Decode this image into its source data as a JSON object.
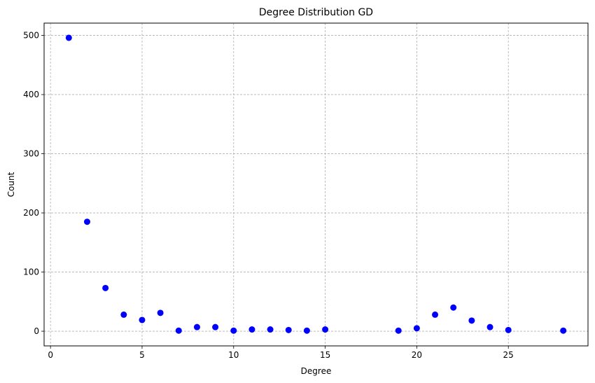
{
  "chart_data": {
    "type": "scatter",
    "title": "Degree Distribution GD",
    "xlabel": "Degree",
    "ylabel": "Count",
    "xlim": [
      -0.35,
      29.35
    ],
    "ylim": [
      -24.8,
      520.8
    ],
    "xticks": [
      0,
      5,
      10,
      15,
      20,
      25
    ],
    "yticks": [
      0,
      100,
      200,
      300,
      400,
      500
    ],
    "grid": true,
    "marker_color": "#0000ff",
    "points": [
      {
        "x": 1,
        "y": 496
      },
      {
        "x": 2,
        "y": 185
      },
      {
        "x": 3,
        "y": 73
      },
      {
        "x": 4,
        "y": 28
      },
      {
        "x": 5,
        "y": 19
      },
      {
        "x": 6,
        "y": 31
      },
      {
        "x": 7,
        "y": 1
      },
      {
        "x": 8,
        "y": 7
      },
      {
        "x": 9,
        "y": 7
      },
      {
        "x": 10,
        "y": 1
      },
      {
        "x": 11,
        "y": 3
      },
      {
        "x": 12,
        "y": 3
      },
      {
        "x": 13,
        "y": 2
      },
      {
        "x": 14,
        "y": 1
      },
      {
        "x": 15,
        "y": 3
      },
      {
        "x": 19,
        "y": 1
      },
      {
        "x": 20,
        "y": 5
      },
      {
        "x": 21,
        "y": 28
      },
      {
        "x": 22,
        "y": 40
      },
      {
        "x": 23,
        "y": 18
      },
      {
        "x": 24,
        "y": 7
      },
      {
        "x": 25,
        "y": 2
      },
      {
        "x": 28,
        "y": 1
      }
    ]
  }
}
